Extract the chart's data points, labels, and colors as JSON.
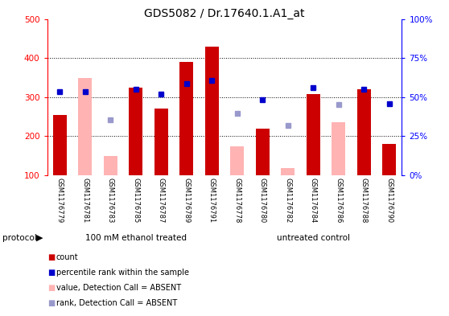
{
  "title": "GDS5082 / Dr.17640.1.A1_at",
  "samples": [
    "GSM1176779",
    "GSM1176781",
    "GSM1176783",
    "GSM1176785",
    "GSM1176787",
    "GSM1176789",
    "GSM1176791",
    "GSM1176778",
    "GSM1176780",
    "GSM1176782",
    "GSM1176784",
    "GSM1176786",
    "GSM1176788",
    "GSM1176790"
  ],
  "group1_label": "100 mM ethanol treated",
  "group2_label": "untreated control",
  "group1_count": 7,
  "group2_count": 7,
  "red_bars": [
    255,
    null,
    null,
    325,
    270,
    390,
    430,
    null,
    220,
    null,
    307,
    null,
    320,
    180
  ],
  "pink_bars": [
    null,
    350,
    150,
    null,
    null,
    null,
    null,
    175,
    null,
    118,
    null,
    235,
    null,
    null
  ],
  "blue_squares_val": [
    315,
    315,
    null,
    320,
    308,
    335,
    343,
    null,
    293,
    null,
    325,
    null,
    320,
    283
  ],
  "lightblue_squares_val": [
    null,
    null,
    242,
    null,
    null,
    null,
    null,
    258,
    null,
    228,
    null,
    282,
    null,
    null
  ],
  "ylim_left": [
    100,
    500
  ],
  "ylim_right": [
    0,
    100
  ],
  "yticks_left": [
    100,
    200,
    300,
    400,
    500
  ],
  "yticks_right": [
    0,
    25,
    50,
    75,
    100
  ],
  "red_color": "#cc0000",
  "pink_color": "#ffb3b3",
  "blue_color": "#0000cc",
  "lightblue_color": "#9999cc",
  "green_color": "#66ff66",
  "background_color": "#ffffff",
  "tick_area_bg": "#c8c8c8",
  "protocol_label": "protocol",
  "legend_items": [
    {
      "label": "count",
      "color": "#cc0000"
    },
    {
      "label": "percentile rank within the sample",
      "color": "#0000cc"
    },
    {
      "label": "value, Detection Call = ABSENT",
      "color": "#ffb3b3"
    },
    {
      "label": "rank, Detection Call = ABSENT",
      "color": "#9999cc"
    }
  ]
}
